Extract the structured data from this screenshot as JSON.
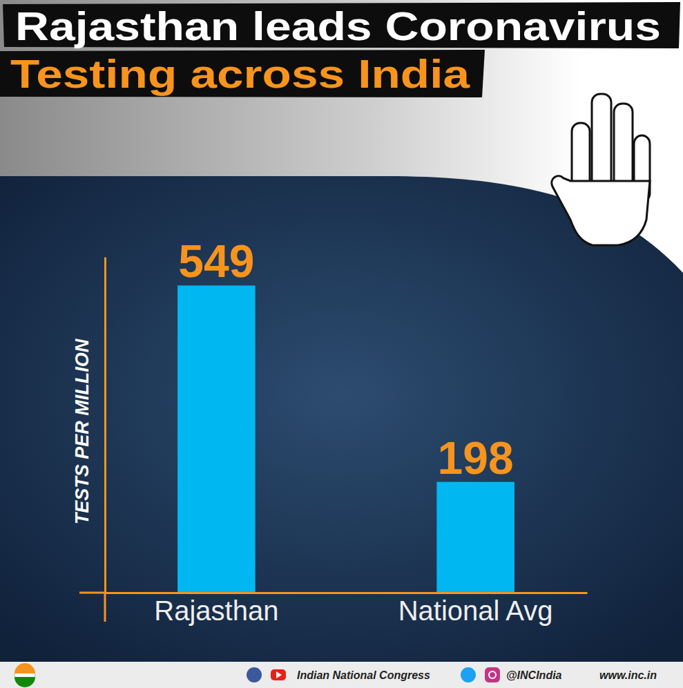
{
  "chart_data": {
    "type": "bar",
    "title": "Rajasthan leads Coronavirus",
    "subtitle": "Testing across India",
    "categories": [
      "Rajasthan",
      "National Avg"
    ],
    "values": [
      549,
      198
    ],
    "color": "#00b7f1",
    "ylim": [
      0,
      600
    ],
    "ylabel": "TESTS PER MILLION",
    "data_labels": true,
    "tick_labels": "x"
  },
  "footer": {
    "name": "Indian National Congress",
    "handle": "@INCIndia",
    "website": "www.inc.in"
  }
}
